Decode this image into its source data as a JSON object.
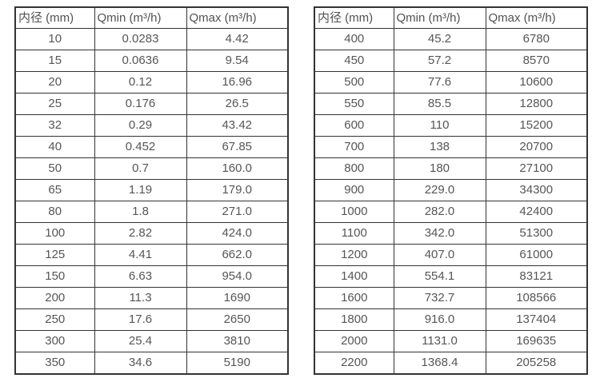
{
  "colors": {
    "background": "#ffffff",
    "border": "#333333",
    "text": "#565656"
  },
  "chart_data": [
    {
      "type": "table",
      "title": "",
      "columns": [
        "内径 (mm)",
        "Qmin (m³/h)",
        "Qmax (m³/h)"
      ],
      "rows": [
        [
          "10",
          "0.0283",
          "4.42"
        ],
        [
          "15",
          "0.0636",
          "9.54"
        ],
        [
          "20",
          "0.12",
          "16.96"
        ],
        [
          "25",
          "0.176",
          "26.5"
        ],
        [
          "32",
          "0.29",
          "43.42"
        ],
        [
          "40",
          "0.452",
          "67.85"
        ],
        [
          "50",
          "0.7",
          "160.0"
        ],
        [
          "65",
          "1.19",
          "179.0"
        ],
        [
          "80",
          "1.8",
          "271.0"
        ],
        [
          "100",
          "2.82",
          "424.0"
        ],
        [
          "125",
          "4.41",
          "662.0"
        ],
        [
          "150",
          "6.63",
          "954.0"
        ],
        [
          "200",
          "11.3",
          "1690"
        ],
        [
          "250",
          "17.6",
          "2650"
        ],
        [
          "300",
          "25.4",
          "3810"
        ],
        [
          "350",
          "34.6",
          "5190"
        ]
      ]
    },
    {
      "type": "table",
      "title": "",
      "columns": [
        "内径 (mm)",
        "Qmin (m³/h)",
        "Qmax (m³/h)"
      ],
      "rows": [
        [
          "400",
          "45.2",
          "6780"
        ],
        [
          "450",
          "57.2",
          "8570"
        ],
        [
          "500",
          "77.6",
          "10600"
        ],
        [
          "550",
          "85.5",
          "12800"
        ],
        [
          "600",
          "110",
          "15200"
        ],
        [
          "700",
          "138",
          "20700"
        ],
        [
          "800",
          "180",
          "27100"
        ],
        [
          "900",
          "229.0",
          "34300"
        ],
        [
          "1000",
          "282.0",
          "42400"
        ],
        [
          "1100",
          "342.0",
          "51300"
        ],
        [
          "1200",
          "407.0",
          "61000"
        ],
        [
          "1400",
          "554.1",
          "83121"
        ],
        [
          "1600",
          "732.7",
          "108566"
        ],
        [
          "1800",
          "916.0",
          "137404"
        ],
        [
          "2000",
          "1131.0",
          "169635"
        ],
        [
          "2200",
          "1368.4",
          "205258"
        ]
      ]
    }
  ]
}
